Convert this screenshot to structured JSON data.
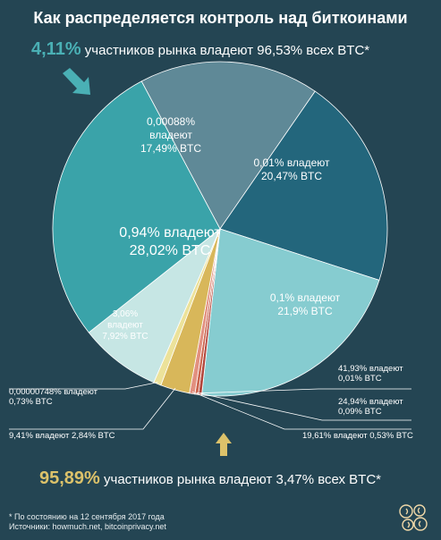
{
  "title": "Как распределяется контроль над биткоинами",
  "top_note": {
    "percent": "4,11%",
    "text": "участников рынка владеют 96,53% всех BTC*"
  },
  "bottom_note": {
    "percent": "95,89%",
    "text": "участников рынка владеют 3,47% всех BTC*"
  },
  "footnote": {
    "line1": "* По состоянию на 12 сентября 2017 года",
    "line2": "Источники: howmuch.net, bitcoinprivacy.net"
  },
  "colors": {
    "background": "#244553",
    "accent_top": "#4ab0b5",
    "accent_bottom": "#dcc26a"
  },
  "chart_data": {
    "type": "pie",
    "slices": [
      {
        "holders": "0,00088%",
        "btc": "17,49% BTC",
        "value": 17.49,
        "label_lines": [
          "0,00088%",
          "владеют",
          "17,49% BTC"
        ],
        "color": "#5f8997"
      },
      {
        "holders": "0,01%",
        "btc": "20,47% BTC",
        "value": 20.47,
        "label_lines": [
          "0,01% владеют",
          "20,47% BTC"
        ],
        "color": "#23667c"
      },
      {
        "holders": "0,1%",
        "btc": "21,9% BTC",
        "value": 21.9,
        "label_lines": [
          "0,1% владеют",
          "21,9% BTC"
        ],
        "color": "#86ccd0"
      },
      {
        "holders": "41,93%",
        "btc": "0,01% BTC",
        "value": 0.01,
        "label_lines": [
          "41,93% владеют",
          "0,01% BTC"
        ],
        "color": "#b2463c",
        "callout": true
      },
      {
        "holders": "24,94%",
        "btc": "0,09% BTC",
        "value": 0.09,
        "label_lines": [
          "24,94% владеют",
          "0,09% BTC"
        ],
        "color": "#cc6650",
        "callout": true
      },
      {
        "holders": "19,61%",
        "btc": "0,53% BTC",
        "value": 0.53,
        "label_lines": [
          "19,61% владеют 0,53% BTC"
        ],
        "color": "#e29080",
        "callout": true
      },
      {
        "holders": "9,41%",
        "btc": "2,84% BTC",
        "value": 2.84,
        "label_lines": [
          "9,41% владеют 2,84% BTC"
        ],
        "color": "#d8b75a",
        "callout": true
      },
      {
        "holders": "0,00000748%",
        "btc": "0,73% BTC",
        "value": 0.73,
        "label_lines": [
          "0,00000748% владеют",
          "0,73% BTC"
        ],
        "color": "#ece29a",
        "callout": true
      },
      {
        "holders": "3,06%",
        "btc": "7,92% BTC",
        "value": 7.92,
        "label_lines": [
          "3,06%",
          "владеют",
          "7,92% BTC"
        ],
        "color": "#c6e6e4"
      },
      {
        "holders": "0,94%",
        "btc": "28,02% BTC",
        "value": 28.02,
        "label_lines": [
          "0,94% владеют",
          "28,02% BTC"
        ],
        "color": "#3aa3a9"
      }
    ]
  }
}
